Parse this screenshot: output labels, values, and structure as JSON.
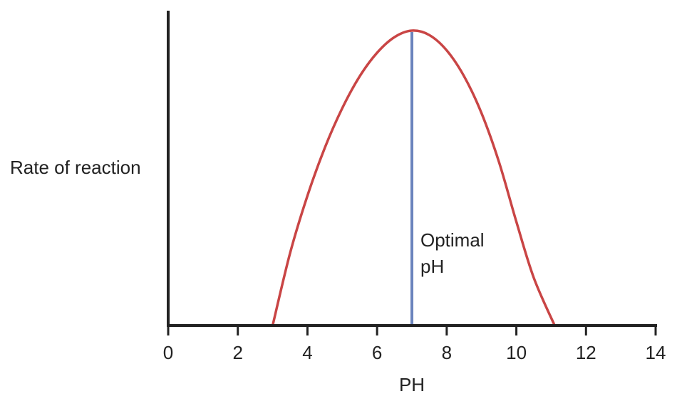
{
  "chart_data": {
    "type": "line",
    "title": "",
    "xlabel": "PH",
    "ylabel": "Rate of reaction",
    "xlim": [
      0,
      14
    ],
    "ylim": [
      0,
      1
    ],
    "x_ticks": [
      0,
      2,
      4,
      6,
      8,
      10,
      12,
      14
    ],
    "y_ticks": [],
    "grid": false,
    "legend": "none",
    "series": [
      {
        "points": [
          {
            "x": 3.0,
            "y": 0.0
          },
          {
            "x": 3.5,
            "y": 0.245
          },
          {
            "x": 4.0,
            "y": 0.44
          },
          {
            "x": 4.5,
            "y": 0.603
          },
          {
            "x": 5.0,
            "y": 0.737
          },
          {
            "x": 5.5,
            "y": 0.845
          },
          {
            "x": 6.0,
            "y": 0.925
          },
          {
            "x": 6.5,
            "y": 0.978
          },
          {
            "x": 7.0,
            "y": 1.0
          },
          {
            "x": 7.5,
            "y": 0.985
          },
          {
            "x": 8.0,
            "y": 0.933
          },
          {
            "x": 8.5,
            "y": 0.845
          },
          {
            "x": 9.0,
            "y": 0.72
          },
          {
            "x": 9.5,
            "y": 0.555
          },
          {
            "x": 10.0,
            "y": 0.352
          },
          {
            "x": 10.5,
            "y": 0.162
          },
          {
            "x": 11.1,
            "y": 0.0
          }
        ],
        "color": "#c94545"
      }
    ],
    "annotations": [
      {
        "x": 7.0,
        "y_from": 0.0,
        "y_to": 1.0,
        "lines": [
          "Optimal",
          "pH"
        ],
        "color": "#6b84bd"
      }
    ]
  }
}
